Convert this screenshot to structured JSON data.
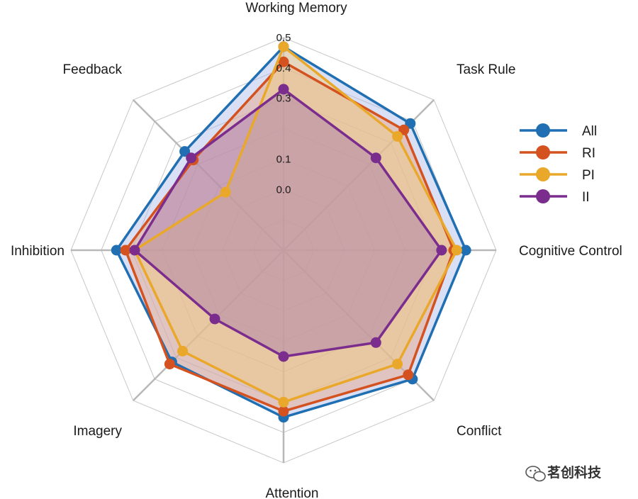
{
  "chart_data": {
    "type": "radar",
    "title": "",
    "axes": [
      "Working Memory",
      "Task Rule",
      "Cognitive Control",
      "Conflict",
      "Attention",
      "Imagery",
      "Inhibition",
      "Feedback"
    ],
    "r_ticks": [
      0.0,
      0.1,
      0.2,
      0.3,
      0.4,
      0.5
    ],
    "r_tick_labels": [
      "0.0",
      "0.1",
      "",
      "0.3",
      "0.4",
      "0.5"
    ],
    "r_range": [
      -0.2,
      0.5
    ],
    "grid": true,
    "legend_position": "right",
    "series": [
      {
        "name": "All",
        "color": "#1f6fb2",
        "fill": "#aab8e6",
        "values": [
          0.47,
          0.39,
          0.4,
          0.4,
          0.35,
          0.32,
          0.35,
          0.26
        ]
      },
      {
        "name": "RI",
        "color": "#d4521f",
        "fill": "#e8a383",
        "values": [
          0.42,
          0.36,
          0.36,
          0.38,
          0.33,
          0.33,
          0.32,
          0.22
        ]
      },
      {
        "name": "PI",
        "color": "#eaa82b",
        "fill": "#f2cc7e",
        "values": [
          0.47,
          0.33,
          0.37,
          0.33,
          0.3,
          0.27,
          0.29,
          0.07
        ]
      },
      {
        "name": "II",
        "color": "#7b2d8e",
        "fill": "#a778ad",
        "values": [
          0.33,
          0.23,
          0.32,
          0.23,
          0.15,
          0.12,
          0.29,
          0.23
        ]
      }
    ]
  },
  "watermark": {
    "text": "茗创科技",
    "icon": "wechat-icon"
  }
}
